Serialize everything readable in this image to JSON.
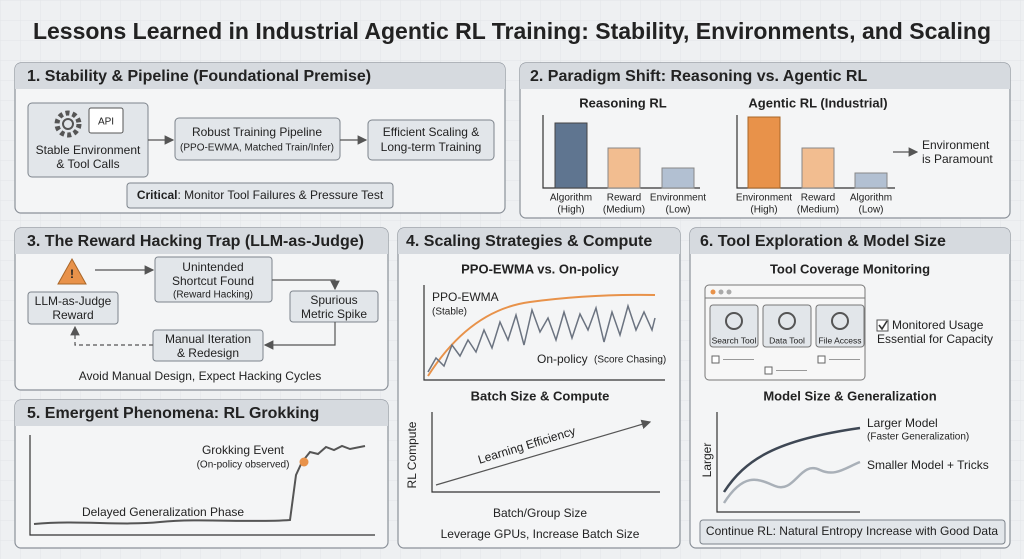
{
  "title": "Lessons Learned in Industrial Agentic RL Training: Stability, Environments, and Scaling",
  "panel1": {
    "heading": "1. Stability & Pipeline (Foundational Premise)",
    "icon_label": "API",
    "env_lines": [
      "Stable Environment",
      "& Tool Calls"
    ],
    "pipeline": "Robust Training Pipeline",
    "pipeline_sub": "(PPO-EWMA, Matched Train/Infer)",
    "scaling_lines": [
      "Efficient Scaling &",
      "Long-term Training"
    ],
    "critical_bold": "Critical",
    "critical_rest": ": Monitor Tool Failures & Pressure Test"
  },
  "panel2": {
    "heading": "2. Paradigm Shift: Reasoning vs. Agentic RL",
    "reasoning": {
      "title": "Reasoning RL",
      "labels": [
        [
          "Algorithm",
          "(High)"
        ],
        [
          "Reward",
          "(Medium)"
        ],
        [
          "Environment",
          "(Low)"
        ]
      ]
    },
    "agentic": {
      "title": "Agentic RL (Industrial)",
      "labels": [
        [
          "Environment",
          "(High)"
        ],
        [
          "Reward",
          "(Medium)"
        ],
        [
          "Algorithm",
          "(Low)"
        ]
      ]
    },
    "conclusion": [
      "Environment",
      "is Paramount"
    ]
  },
  "panel3": {
    "heading": "3. The Reward Hacking Trap (LLM-as-Judge)",
    "judge": [
      "LLM-as-Judge",
      "Reward"
    ],
    "shortcut": [
      "Unintended",
      "Shortcut Found"
    ],
    "shortcut_sub": "(Reward Hacking)",
    "spike": [
      "Spurious",
      "Metric Spike"
    ],
    "manual": [
      "Manual Iteration",
      "& Redesign"
    ],
    "footer": "Avoid Manual Design, Expect Hacking Cycles"
  },
  "panel4": {
    "heading": "4. Scaling Strategies & Compute",
    "chart1_title": "PPO-EWMA vs. On-policy",
    "ppo": "PPO-EWMA",
    "ppo_sub": "(Stable)",
    "onpolicy": "On-policy",
    "onpolicy_sub": "(Score Chasing)",
    "chart2_title": "Batch Size & Compute",
    "y_label": "RL Compute",
    "line_label": "Learning Efficiency",
    "x_label": "Batch/Group Size",
    "footer": "Leverage GPUs, Increase Batch Size"
  },
  "panel5": {
    "heading": "5. Emergent Phenomena: RL Grokking",
    "event": "Grokking Event",
    "event_sub": "(On-policy observed)",
    "phase": "Delayed Generalization Phase"
  },
  "panel6": {
    "heading": "6. Tool Exploration & Model Size",
    "coverage_title": "Tool Coverage Monitoring",
    "tools": [
      "Search Tool",
      "Data Tool",
      "File Access"
    ],
    "monitored": [
      "Monitored Usage",
      "Essential for Capacity"
    ],
    "size_title": "Model Size & Generalization",
    "y_label": "Larger",
    "larger": "Larger Model",
    "larger_sub": "(Faster Generalization)",
    "smaller": "Smaller Model + Tricks",
    "footer": "Continue RL: Natural Entropy Increase with Good Data"
  }
}
